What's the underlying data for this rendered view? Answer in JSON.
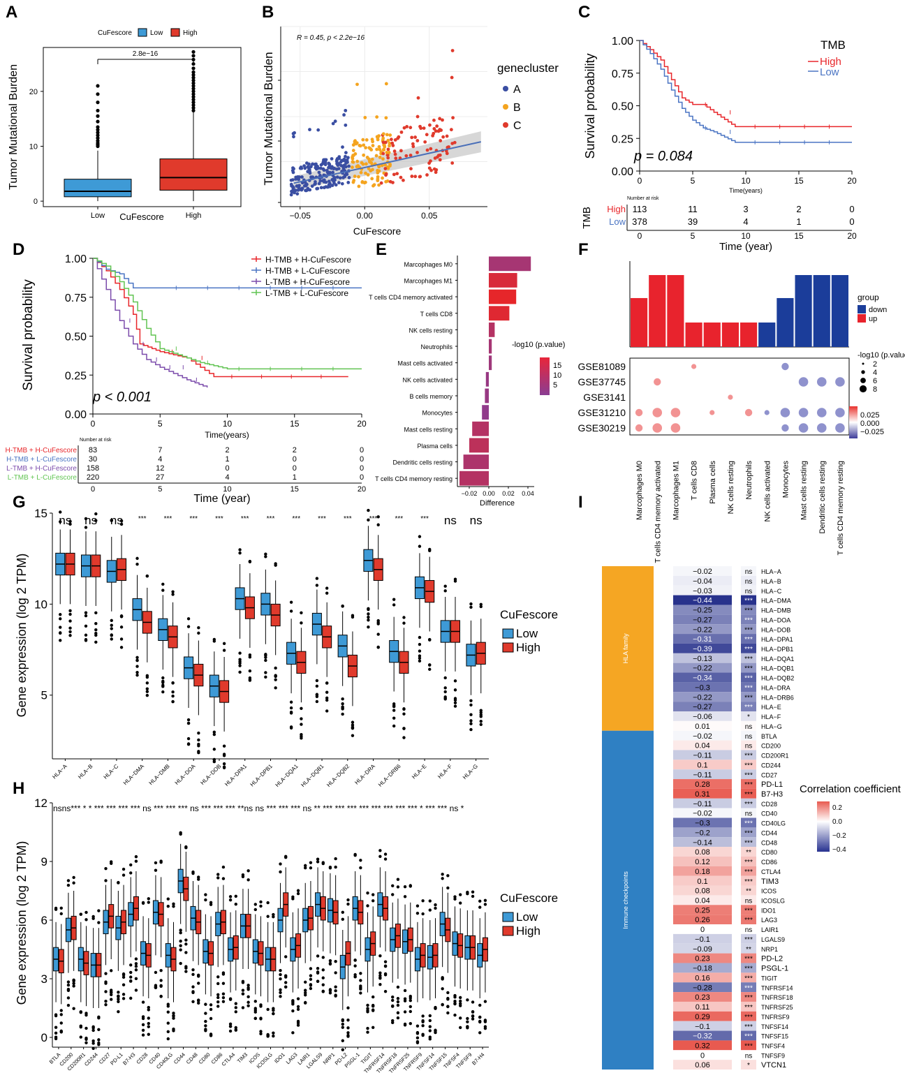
{
  "colors": {
    "blue": "#3E9AD6",
    "red": "#E03A2C",
    "navy": "#3A4EA2",
    "orange": "#F4A41F",
    "purple": "#8A3D93",
    "km_red": "#E8262A",
    "km_blue": "#4A74C3",
    "km_purple": "#7B4BAB",
    "km_green": "#61C452",
    "hla_bar": "#F5A623",
    "imm_bar": "#2F80C3"
  },
  "chart_data": [
    {
      "panel": "A",
      "type": "box",
      "title": "",
      "legend_title": "CuFescore",
      "legend": [
        "Low",
        "High"
      ],
      "ylabel": "Tumor Mutational Burden",
      "xlabel": "CuFescore",
      "categories": [
        "Low",
        "High"
      ],
      "ylim": [
        -1,
        28
      ],
      "yticks": [
        0,
        10,
        20
      ],
      "pvalue": "2.8e−16",
      "boxes": [
        {
          "q1": 0.8,
          "median": 1.8,
          "q3": 4.0,
          "wlo": 0,
          "whi": 9.2,
          "outliers": [
            10,
            10.3,
            10.6,
            11,
            11.5,
            12,
            12.5,
            13,
            13.5,
            14.5,
            15.5,
            16.5,
            18,
            19.5,
            21
          ]
        },
        {
          "q1": 2.0,
          "median": 4.3,
          "q3": 7.7,
          "wlo": 0,
          "whi": 16.2,
          "outliers": [
            16.5,
            17,
            17.5,
            18,
            18.5,
            19,
            19.5,
            20,
            20.5,
            21,
            21.5,
            22,
            22.5,
            23,
            23.5,
            24.2,
            25,
            25.8,
            26.5,
            27.2
          ]
        }
      ]
    },
    {
      "panel": "B",
      "type": "scatter",
      "title": "",
      "annotation": "R = 0.45, p < 2.2e−16",
      "xlabel": "CuFescore",
      "ylabel": "Tumor Mutational Burden",
      "xticks": [
        "−0.05",
        "0.00",
        "0.05"
      ],
      "xticks_val": [
        -0.05,
        0,
        0.05
      ],
      "xlim": [
        -0.065,
        0.095
      ],
      "legend_title": "genecluster",
      "legend": [
        "A",
        "B",
        "C"
      ],
      "fit": {
        "x0": -0.055,
        "x1": 0.09,
        "y0_frac": 0.13,
        "y1_frac": 0.36
      }
    },
    {
      "panel": "C",
      "type": "line",
      "title": "",
      "ylabel": "Survival probability",
      "xlabel": "Time(years)",
      "legend_title": "TMB",
      "legend": [
        "High",
        "Low"
      ],
      "yticks": [
        "0.00",
        "0.25",
        "0.50",
        "0.75",
        "1.00"
      ],
      "xticks": [
        "0",
        "5",
        "10",
        "15",
        "20"
      ],
      "pvalue": "p = 0.084",
      "series": [
        {
          "name": "High",
          "x": [
            0,
            1,
            2,
            3,
            4,
            5,
            6,
            7,
            9,
            20
          ],
          "y": [
            1,
            0.93,
            0.85,
            0.7,
            0.56,
            0.51,
            0.51,
            0.45,
            0.34,
            0.34
          ]
        },
        {
          "name": "Low",
          "x": [
            0,
            1,
            2,
            3,
            4,
            5,
            6,
            7,
            9,
            20
          ],
          "y": [
            1,
            0.9,
            0.78,
            0.62,
            0.48,
            0.39,
            0.33,
            0.3,
            0.22,
            0.22
          ]
        }
      ],
      "risk": {
        "title": "Number at risk",
        "label": "TMB",
        "rows": [
          [
            "High",
            "113",
            "11",
            "3",
            "2",
            "0"
          ],
          [
            "Low",
            "378",
            "39",
            "4",
            "1",
            "0"
          ]
        ],
        "xlabel": "Time (year)"
      }
    },
    {
      "panel": "D",
      "type": "line",
      "title": "",
      "ylabel": "Survival probability",
      "xlabel": "Time(years)",
      "legend": [
        "H-TMB + H-CuFescore",
        "H-TMB + L-CuFescore",
        "L-TMB + H-CuFescore",
        "L-TMB + L-CuFescore"
      ],
      "yticks": [
        "0.00",
        "0.25",
        "0.50",
        "0.75",
        "1.00"
      ],
      "xticks": [
        "0",
        "5",
        "10",
        "15",
        "20"
      ],
      "pvalue": "p < 0.001",
      "series": [
        {
          "name": "H-TMB + H-CuFescore",
          "x": [
            0,
            1,
            2,
            3,
            3.5,
            5,
            7,
            9,
            19
          ],
          "y": [
            1,
            0.92,
            0.8,
            0.64,
            0.45,
            0.4,
            0.36,
            0.24,
            0.24
          ]
        },
        {
          "name": "H-TMB + L-CuFescore",
          "x": [
            0,
            1,
            2,
            3,
            20
          ],
          "y": [
            1,
            0.93,
            0.9,
            0.81,
            0.81
          ]
        },
        {
          "name": "L-TMB + H-CuFescore",
          "x": [
            0,
            1,
            2,
            3,
            4,
            5,
            7,
            8.5
          ],
          "y": [
            1,
            0.8,
            0.6,
            0.45,
            0.35,
            0.3,
            0.22,
            0.17
          ]
        },
        {
          "name": "L-TMB + L-CuFescore",
          "x": [
            0,
            1,
            2,
            3,
            4,
            5,
            8,
            10,
            20
          ],
          "y": [
            1,
            0.95,
            0.85,
            0.72,
            0.55,
            0.42,
            0.33,
            0.29,
            0.29
          ]
        }
      ],
      "risk": {
        "title": "Number at risk",
        "rows": [
          [
            "H-TMB + H-CuFescore",
            "83",
            "7",
            "2",
            "2",
            "0"
          ],
          [
            "H-TMB + L-CuFescore",
            "30",
            "4",
            "1",
            "0",
            "0"
          ],
          [
            "L-TMB + H-CuFescore",
            "158",
            "12",
            "0",
            "0",
            "0"
          ],
          [
            "L-TMB + L-CuFescore",
            "220",
            "27",
            "4",
            "1",
            "0"
          ]
        ],
        "xlabel": "Time (year)"
      }
    },
    {
      "panel": "E",
      "type": "bar",
      "title": "",
      "xlabel": "Difference",
      "xticks": [
        "−0.02",
        "0.00",
        "0.02",
        "0.04"
      ],
      "legend_title": "-log10 (p.value)",
      "legend_ticks": [
        "15",
        "10",
        "5"
      ],
      "categories": [
        "Marcophages M0",
        "Marcophages M1",
        "T cells CD4 memory activated",
        "T cells CD8",
        "NK cells resting",
        "Neutrophils",
        "Mast cells activated",
        "NK cells activated",
        "B cells memory",
        "Monocytes",
        "Mast cells resting",
        "Plasma cells",
        "Dendritic cells resting",
        "T cells CD4 memory resting"
      ],
      "values": [
        0.043,
        0.029,
        0.028,
        0.021,
        0.006,
        0.003,
        0.003,
        -0.003,
        -0.004,
        -0.007,
        -0.017,
        -0.02,
        -0.026,
        -0.03
      ],
      "pvals": [
        8,
        15,
        17,
        16,
        10,
        8,
        7,
        6,
        6,
        5,
        10,
        11,
        9,
        10
      ]
    },
    {
      "panel": "F",
      "type": "bar",
      "title": "",
      "categories": [
        "Marcophages M0",
        "T cells CD4 memory activated",
        "Marcophages M1",
        "T cells CD8",
        "Plasma cells",
        "NK cells resting",
        "Neutrophils",
        "NK cells activated",
        "Monocytes",
        "Mast cells resting",
        "Dendritic cells resting",
        "T cells CD4 memory resting"
      ],
      "bar_values": [
        0.68,
        1.0,
        1.0,
        0.34,
        0.34,
        0.34,
        0.34,
        0.34,
        0.68,
        1.0,
        1.0,
        1.0
      ],
      "groups": [
        "up",
        "up",
        "up",
        "up",
        "up",
        "up",
        "up",
        "down",
        "down",
        "down",
        "down",
        "down"
      ],
      "legend_title": "group",
      "legend": [
        "down",
        "up"
      ],
      "datasets": [
        "GSE81089",
        "GSE37745",
        "GSE3141",
        "GSE31210",
        "GSE30219"
      ],
      "size_title": "-log10 (p.value)",
      "size_ticks": [
        "2",
        "4",
        "6",
        "8"
      ],
      "color_ticks": [
        "0.025",
        "0.000",
        "−0.025"
      ]
    },
    {
      "panel": "G",
      "type": "box",
      "title": "",
      "ylabel": "Gene expression (log 2 TPM)",
      "legend_title": "CuFescore",
      "legend": [
        "Low",
        "High"
      ],
      "yticks": [
        5,
        10,
        15
      ],
      "ylim": [
        1.5,
        15
      ],
      "categories": [
        "HLA−A",
        "HLA−B",
        "HLA−C",
        "HLA−DMA",
        "HLA−DMB",
        "HLA−DOA",
        "HLA−DOB",
        "HLA−DPA1",
        "HLA−DPB1",
        "HLA−DQA1",
        "HLA−DQB1",
        "HLA−DQB2",
        "HLA−DRA",
        "HLA−DRB6",
        "HLA−E",
        "HLA−F",
        "HLA−G"
      ],
      "sig": [
        "ns",
        "ns",
        "ns",
        "***",
        "***",
        "***",
        "***",
        "***",
        "***",
        "***",
        "***",
        "***",
        "***",
        "***",
        "***",
        "ns",
        "ns"
      ],
      "low_median": [
        12.2,
        12.1,
        11.8,
        9.7,
        8.6,
        6.5,
        5.5,
        10.3,
        10.0,
        7.3,
        8.9,
        7.7,
        12.4,
        7.4,
        10.9,
        8.5,
        7.2
      ],
      "high_median": [
        12.2,
        12.1,
        11.9,
        9.0,
        8.2,
        6.1,
        5.2,
        9.8,
        9.4,
        6.8,
        8.2,
        6.6,
        11.9,
        6.8,
        10.7,
        8.5,
        7.3
      ]
    },
    {
      "panel": "H",
      "type": "box",
      "title": "",
      "ylabel": "Gene expression (log 2 TPM)",
      "legend_title": "CuFescore",
      "legend": [
        "Low",
        "High"
      ],
      "yticks": [
        0,
        3,
        6,
        9,
        12
      ],
      "ylim": [
        -0.5,
        12
      ],
      "categories": [
        "BTLA",
        "CD200",
        "CD200R1",
        "CD244",
        "CD27",
        "PD-L1",
        "B7-H3",
        "CD28",
        "CD40",
        "CD40LG",
        "CD44",
        "CD48",
        "CD80",
        "CD86",
        "CTLA4",
        "TIM3",
        "ICOS",
        "ICOSLG",
        "IDO1",
        "LAG3",
        "LAIR1",
        "LGALS9",
        "NRP1",
        "PD-L2",
        "PSGL-1",
        "TIGIT",
        "TNFRSF14",
        "TNFRSF18",
        "TNFRSF25",
        "TNFRSF9",
        "TNFSF14",
        "TNFSF15",
        "TNFSF4",
        "TNFSF9",
        "B7-H4"
      ],
      "sig_text": "nsns***  *  *  ***  ***  ***  ***  ns ***  ***  ***  ns ***  ***  ***  **ns ns ***  ***  ***  ns **  ***  ***  ***  ***  ***  ***  ***  ***  *  ***  ***  ns *",
      "low_median": [
        4.0,
        5.5,
        4.0,
        3.7,
        5.9,
        5.6,
        6.3,
        4.3,
        6.4,
        4.2,
        8.0,
        6.1,
        4.4,
        5.8,
        4.5,
        5.7,
        4.4,
        4.0,
        6.0,
        4.5,
        6.0,
        6.8,
        6.5,
        3.6,
        6.6,
        4.5,
        6.8,
        5.0,
        4.9,
        4.0,
        4.1,
        5.8,
        4.8,
        4.6,
        4.2
      ],
      "high_median": [
        3.9,
        5.6,
        3.8,
        3.7,
        6.2,
        5.9,
        6.6,
        4.2,
        6.3,
        4.0,
        7.6,
        5.9,
        4.3,
        5.9,
        4.6,
        5.7,
        4.3,
        4.0,
        6.8,
        4.7,
        6.1,
        6.6,
        6.4,
        4.3,
        6.4,
        4.8,
        6.6,
        5.2,
        5.0,
        4.2,
        4.2,
        5.5,
        4.7,
        4.6,
        4.5
      ]
    },
    {
      "panel": "I",
      "type": "heatmap",
      "title": "",
      "legend_title": "Correlation coefficient",
      "legend_ticks": [
        "0.2",
        "0.0",
        "−0.2",
        "−0.4"
      ],
      "groups": [
        {
          "name": "HLA family",
          "count": 17
        },
        {
          "name": "Immune checkpoints",
          "count": 35
        }
      ],
      "genes": [
        "HLA−A",
        "HLA−B",
        "HLA−C",
        "HLA−DMA",
        "HLA−DMB",
        "HLA−DOA",
        "HLA−DOB",
        "HLA−DPA1",
        "HLA−DPB1",
        "HLA−DQA1",
        "HLA−DQB1",
        "HLA−DQB2",
        "HLA−DRA",
        "HLA−DRB6",
        "HLA−E",
        "HLA−F",
        "HLA−G",
        "BTLA",
        "CD200",
        "CD200R1",
        "CD244",
        "CD27",
        "PD-L1",
        "B7-H3",
        "CD28",
        "CD40",
        "CD40LG",
        "CD44",
        "CD48",
        "CD80",
        "CD86",
        "CTLA4",
        "TIM3",
        "ICOS",
        "ICOSLG",
        "IDO1",
        "LAG3",
        "LAIR1",
        "LGALS9",
        "NRP1",
        "PD-L2",
        "PSGL-1",
        "TIGIT",
        "TNFRSF14",
        "TNFRSF18",
        "TNFRSF25",
        "TNFRSF9",
        "TNFSF14",
        "TNFSF15",
        "TNFSF4",
        "TNFSF9",
        "VTCN1"
      ],
      "values": [
        -0.02,
        -0.04,
        -0.03,
        -0.44,
        -0.25,
        -0.27,
        -0.22,
        -0.31,
        -0.39,
        -0.13,
        -0.22,
        -0.34,
        -0.3,
        -0.22,
        -0.27,
        -0.06,
        0.01,
        -0.02,
        0.04,
        -0.11,
        0.1,
        -0.11,
        0.28,
        0.31,
        -0.11,
        -0.02,
        -0.3,
        -0.2,
        -0.14,
        0.08,
        0.12,
        0.18,
        0.1,
        0.08,
        0.04,
        0.25,
        0.26,
        0,
        -0.1,
        -0.09,
        0.23,
        -0.18,
        0.16,
        -0.28,
        0.23,
        0.11,
        0.29,
        -0.1,
        -0.32,
        0.32,
        0,
        0.06
      ],
      "labels": [
        "−0.02",
        "−0.04",
        "−0.03",
        "−0.44",
        "−0.25",
        "−0.27",
        "−0.22",
        "−0.31",
        "−0.39",
        "−0.13",
        "−0.22",
        "−0.34",
        "−0.3",
        "−0.22",
        "−0.27",
        "−0.06",
        "0.01",
        "−0.02",
        "0.04",
        "−0.11",
        "0.1",
        "−0.11",
        "0.28",
        "0.31",
        "−0.11",
        "−0.02",
        "−0.3",
        "−0.2",
        "−0.14",
        "0.08",
        "0.12",
        "0.18",
        "0.1",
        "0.08",
        "0.04",
        "0.25",
        "0.26",
        "0",
        "−0.1",
        "−0.09",
        "0.23",
        "−0.18",
        "0.16",
        "−0.28",
        "0.23",
        "0.11",
        "0.29",
        "−0.1",
        "−0.32",
        "0.32",
        "0",
        "0.06"
      ],
      "sig": [
        "ns",
        "ns",
        "ns",
        "***",
        "***",
        "***",
        "***",
        "***",
        "***",
        "***",
        "***",
        "***",
        "***",
        "***",
        "***",
        "*",
        "ns",
        "ns",
        "ns",
        "***",
        "***",
        "***",
        "***",
        "***",
        "***",
        "ns",
        "***",
        "***",
        "***",
        "**",
        "***",
        "***",
        "***",
        "**",
        "ns",
        "***",
        "***",
        "ns",
        "***",
        "**",
        "***",
        "***",
        "***",
        "***",
        "***",
        "***",
        "***",
        "***",
        "***",
        "***",
        "ns",
        "*"
      ]
    }
  ],
  "panel_labels": [
    "A",
    "B",
    "C",
    "D",
    "E",
    "F",
    "G",
    "H",
    "I"
  ]
}
